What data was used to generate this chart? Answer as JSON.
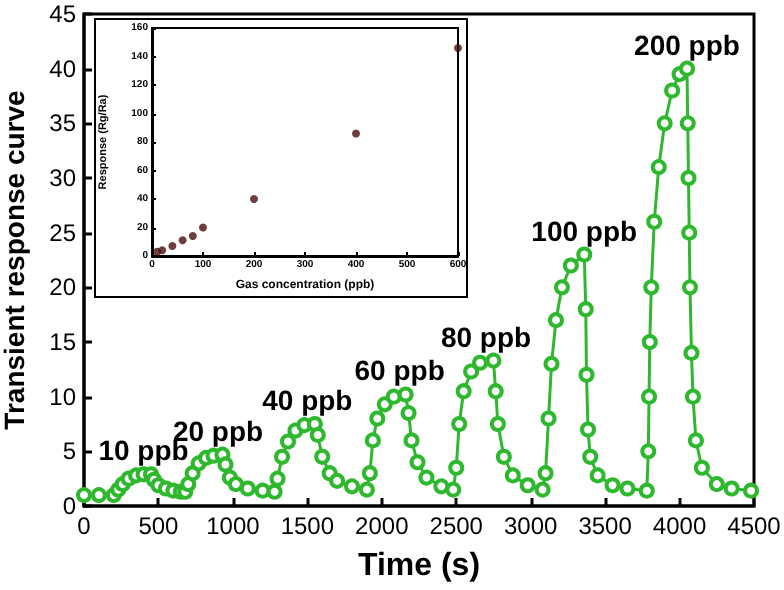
{
  "chart_data": [
    {
      "type": "line",
      "xlabel": "Time (s)",
      "ylabel": "Transient response curve",
      "xlim": [
        0,
        4500
      ],
      "xticks": [
        0,
        500,
        1000,
        1500,
        2000,
        2500,
        3000,
        3500,
        4000,
        4500
      ],
      "ylim": [
        0,
        45
      ],
      "yticks": [
        0,
        5,
        10,
        15,
        20,
        25,
        30,
        35,
        40,
        45
      ],
      "grid": false,
      "marker": "circle",
      "line_style": "solid",
      "x": [
        0,
        100,
        200,
        230,
        260,
        300,
        350,
        400,
        450,
        470,
        500,
        550,
        600,
        650,
        680,
        700,
        730,
        770,
        820,
        870,
        930,
        950,
        980,
        1020,
        1100,
        1200,
        1280,
        1300,
        1330,
        1370,
        1420,
        1480,
        1550,
        1570,
        1600,
        1650,
        1700,
        1800,
        1900,
        1920,
        1940,
        1970,
        2020,
        2080,
        2160,
        2180,
        2200,
        2240,
        2300,
        2400,
        2480,
        2500,
        2520,
        2550,
        2600,
        2660,
        2750,
        2765,
        2780,
        2820,
        2880,
        2980,
        3080,
        3100,
        3120,
        3140,
        3170,
        3210,
        3270,
        3360,
        3370,
        3375,
        3385,
        3400,
        3450,
        3550,
        3650,
        3780,
        3790,
        3795,
        3800,
        3810,
        3830,
        3860,
        3900,
        3950,
        4000,
        4050,
        4055,
        4060,
        4065,
        4070,
        4080,
        4090,
        4110,
        4150,
        4250,
        4350,
        4480
      ],
      "series": [
        {
          "color": "#2eb82e",
          "values": [
            1.0,
            1.0,
            1.0,
            1.5,
            2.0,
            2.5,
            2.8,
            2.9,
            2.9,
            2.4,
            1.9,
            1.6,
            1.4,
            1.3,
            1.3,
            2.0,
            3.0,
            3.9,
            4.4,
            4.6,
            4.7,
            3.8,
            2.6,
            2.0,
            1.6,
            1.4,
            1.3,
            2.5,
            4.5,
            5.9,
            6.9,
            7.4,
            7.5,
            6.5,
            4.5,
            3.0,
            2.3,
            1.8,
            1.5,
            3.0,
            6.0,
            8.0,
            9.3,
            10.0,
            10.2,
            8.5,
            6.0,
            4.0,
            2.6,
            1.8,
            1.5,
            3.5,
            7.5,
            10.5,
            12.3,
            13.1,
            13.3,
            10.5,
            7.5,
            4.5,
            2.8,
            1.9,
            1.5,
            3.0,
            8.0,
            13.0,
            17.0,
            20.0,
            22.0,
            23.0,
            18.0,
            12.0,
            7.0,
            4.5,
            2.8,
            1.9,
            1.6,
            1.4,
            5,
            10,
            15,
            20,
            26,
            31,
            35,
            38,
            39.5,
            40,
            35,
            30,
            25,
            20,
            14,
            10,
            6,
            3.5,
            2.0,
            1.6,
            1.4
          ]
        }
      ],
      "annotations": [
        {
          "text": "10 ppb",
          "x": 400,
          "y": 2.9
        },
        {
          "text": "20 ppb",
          "x": 900,
          "y": 4.7
        },
        {
          "text": "40 ppb",
          "x": 1500,
          "y": 7.5
        },
        {
          "text": "60 ppb",
          "x": 2120,
          "y": 10.2
        },
        {
          "text": "80 ppb",
          "x": 2700,
          "y": 13.3
        },
        {
          "text": "100 ppb",
          "x": 3360,
          "y": 23.0
        },
        {
          "text": "200 ppb",
          "x": 4050,
          "y": 40
        }
      ]
    },
    {
      "type": "scatter",
      "xlabel": "Gas concentration (ppb)",
      "ylabel": "Response (Rg/Ra)",
      "xlim": [
        0,
        600
      ],
      "xticks": [
        0,
        100,
        200,
        300,
        400,
        500,
        600
      ],
      "ylim": [
        0,
        160
      ],
      "yticks": [
        0,
        20,
        40,
        60,
        80,
        100,
        120,
        140,
        160
      ],
      "grid": false,
      "marker": "circle",
      "x": [
        10,
        20,
        40,
        60,
        80,
        100,
        200,
        400,
        600
      ],
      "series": [
        {
          "color": "#4a0d0d",
          "values": [
            3,
            4,
            7,
            11,
            14,
            20,
            40,
            86,
            146
          ]
        }
      ]
    }
  ]
}
